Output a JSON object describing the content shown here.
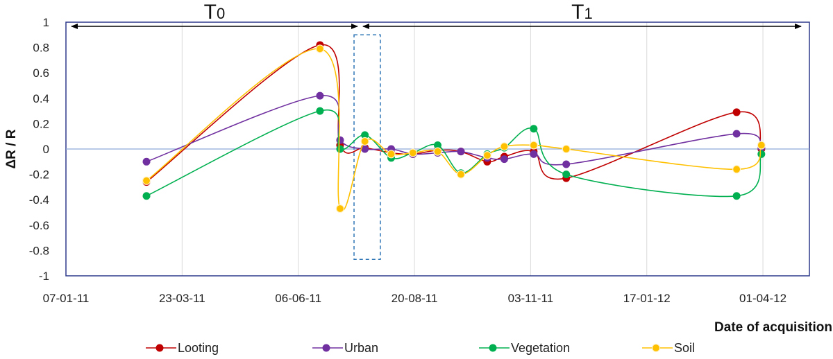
{
  "chart_data": {
    "type": "line",
    "title": "",
    "xlabel": "Date of acquisition",
    "ylabel": "ΔR / R",
    "ylim": [
      -1,
      1
    ],
    "yticks": [
      1,
      0.8,
      0.6,
      0.4,
      0.2,
      0,
      -0.2,
      -0.4,
      -0.6,
      -0.8,
      -1
    ],
    "xlim_days": [
      0,
      480
    ],
    "xticks": [
      {
        "day": 0,
        "label": "07-01-11"
      },
      {
        "day": 75,
        "label": "23-03-11"
      },
      {
        "day": 150,
        "label": "06-06-11"
      },
      {
        "day": 225,
        "label": "20-08-11"
      },
      {
        "day": 300,
        "label": "03-11-11"
      },
      {
        "day": 375,
        "label": "17-01-12"
      },
      {
        "day": 450,
        "label": "01-04-12"
      }
    ],
    "periods": [
      {
        "label": "T",
        "subscript": "0",
        "start_day": 0,
        "end_day": 190
      },
      {
        "label": "T",
        "subscript": "1",
        "start_day": 190,
        "end_day": 480
      }
    ],
    "highlight_box": {
      "start_day": 186,
      "end_day": 203,
      "y_range": [
        -0.87,
        0.9
      ]
    },
    "x": [
      52,
      164,
      177,
      193,
      210,
      224,
      240,
      255,
      272,
      283,
      302,
      323,
      433,
      449
    ],
    "series": [
      {
        "name": "Looting",
        "color": "#C00000",
        "values": [
          -0.26,
          0.82,
          0.03,
          0.01,
          -0.03,
          -0.04,
          -0.01,
          -0.02,
          -0.1,
          -0.06,
          -0.02,
          -0.23,
          0.29,
          0.0
        ]
      },
      {
        "name": "Urban",
        "color": "#7030A0",
        "values": [
          -0.1,
          0.42,
          0.07,
          0.0,
          0.0,
          -0.04,
          -0.03,
          -0.02,
          -0.07,
          -0.08,
          -0.04,
          -0.12,
          0.12,
          0.01
        ]
      },
      {
        "name": "Vegetation",
        "color": "#00B050",
        "values": [
          -0.37,
          0.3,
          0.0,
          0.11,
          -0.07,
          -0.03,
          0.03,
          -0.19,
          -0.04,
          0.01,
          0.16,
          -0.2,
          -0.37,
          -0.04
        ]
      },
      {
        "name": "Soil",
        "color": "#FFC000",
        "values": [
          -0.25,
          0.79,
          -0.47,
          0.06,
          -0.04,
          -0.03,
          -0.02,
          -0.2,
          -0.05,
          0.02,
          0.03,
          0.0,
          -0.16,
          0.03
        ]
      }
    ],
    "legend_position": "bottom"
  }
}
